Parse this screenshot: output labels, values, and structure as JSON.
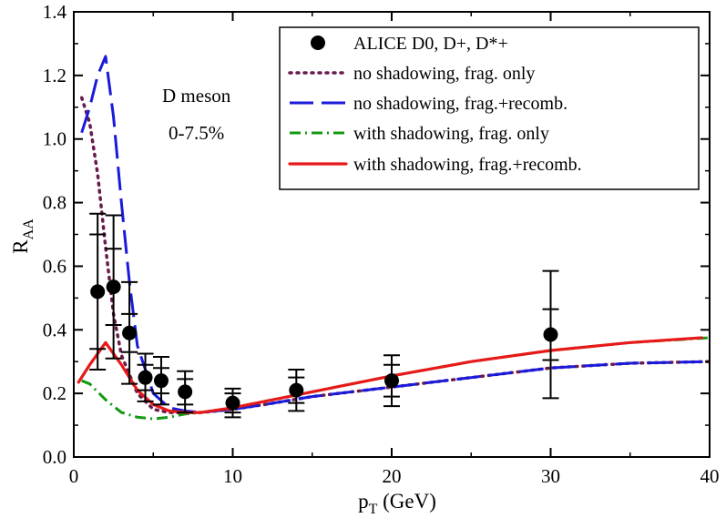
{
  "chart_data": {
    "type": "line",
    "xlabel": "p",
    "xlabel_sub": "T",
    "xlabel_unit": " (GeV)",
    "ylabel": "R",
    "ylabel_sub": "AA",
    "xlim": [
      0,
      40
    ],
    "ylim": [
      0,
      1.4
    ],
    "xticks": [
      0,
      10,
      20,
      30,
      40
    ],
    "xtick_labels": [
      "0",
      "10",
      "20",
      "30",
      "40"
    ],
    "yticks": [
      0,
      0.2,
      0.4,
      0.6,
      0.8,
      1.0,
      1.2,
      1.4
    ],
    "ytick_labels": [
      "0.0",
      "0.2",
      "0.4",
      "0.6",
      "0.8",
      "1.0",
      "1.2",
      "1.4"
    ],
    "annotation": {
      "line1": "D meson",
      "line2": "0-7.5%"
    },
    "legend_position": "top-right",
    "points": {
      "name": "ALICE D0, D+, D*+",
      "color": "#000000",
      "x": [
        1.5,
        2.5,
        3.5,
        4.5,
        5.5,
        7,
        10,
        14,
        20,
        30
      ],
      "y": [
        0.52,
        0.535,
        0.39,
        0.25,
        0.24,
        0.205,
        0.17,
        0.21,
        0.24,
        0.385
      ],
      "err_inner": [
        0.18,
        0.12,
        0.06,
        0.04,
        0.04,
        0.04,
        0.03,
        0.04,
        0.05,
        0.08
      ],
      "err_outer": [
        0.245,
        0.225,
        0.16,
        0.075,
        0.075,
        0.065,
        0.045,
        0.065,
        0.08,
        0.2
      ]
    },
    "series": [
      {
        "name": "no shadowing, frag. only",
        "color": "#6a1b4d",
        "dash": "2,6",
        "width": 3.5,
        "cap": "round",
        "x": [
          0.5,
          1,
          1.5,
          2,
          2.5,
          3,
          4,
          5,
          6,
          8,
          10,
          12,
          15,
          20,
          25,
          30,
          35,
          40
        ],
        "y": [
          1.13,
          1.05,
          0.89,
          0.66,
          0.45,
          0.32,
          0.2,
          0.15,
          0.14,
          0.14,
          0.15,
          0.165,
          0.19,
          0.22,
          0.25,
          0.28,
          0.295,
          0.3
        ]
      },
      {
        "name": "no shadowing, frag.+recomb.",
        "color": "#1a1adb",
        "dash": "26,9",
        "width": 3,
        "cap": "butt",
        "x": [
          0.5,
          1,
          1.5,
          2,
          2.5,
          3,
          3.5,
          4,
          5,
          6,
          7,
          8,
          10,
          12,
          15,
          20,
          25,
          30,
          35,
          40
        ],
        "y": [
          1.02,
          1.1,
          1.2,
          1.26,
          1.07,
          0.8,
          0.55,
          0.35,
          0.2,
          0.155,
          0.145,
          0.14,
          0.15,
          0.165,
          0.19,
          0.22,
          0.25,
          0.28,
          0.295,
          0.3
        ]
      },
      {
        "name": "with shadowing, frag. only",
        "color": "#119911",
        "dash": "12,5,2,5",
        "width": 3,
        "cap": "butt",
        "x": [
          0.5,
          1,
          2,
          3,
          4,
          5,
          6,
          7,
          8,
          10,
          12,
          15,
          20,
          25,
          30,
          35,
          40
        ],
        "y": [
          0.24,
          0.23,
          0.18,
          0.14,
          0.125,
          0.12,
          0.125,
          0.135,
          0.14,
          0.155,
          0.175,
          0.205,
          0.255,
          0.3,
          0.335,
          0.36,
          0.375
        ]
      },
      {
        "name": "with shadowing, frag.+recomb.",
        "color": "#e81919",
        "dash": "",
        "width": 3.2,
        "cap": "round",
        "x": [
          0.3,
          1,
          2,
          3,
          4,
          5,
          6,
          7,
          8,
          10,
          12,
          15,
          20,
          25,
          30,
          35,
          39.5
        ],
        "y": [
          0.235,
          0.29,
          0.36,
          0.29,
          0.21,
          0.165,
          0.145,
          0.14,
          0.14,
          0.155,
          0.175,
          0.205,
          0.255,
          0.3,
          0.335,
          0.36,
          0.375
        ]
      }
    ]
  }
}
